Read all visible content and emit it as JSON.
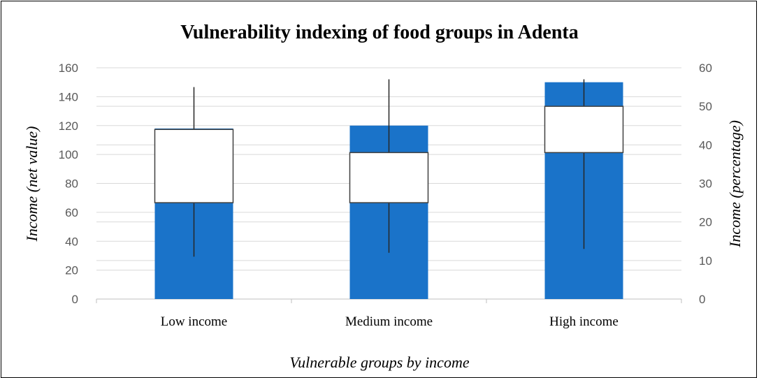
{
  "chart_data": {
    "type": "bar",
    "title": "Vulnerability indexing of food groups in Adenta",
    "xlabel": "Vulnerable groups by income",
    "ylabel_left": "Income (net value)",
    "ylabel_right": "Income (percentage)",
    "categories": [
      "Low income",
      "Medium income",
      "High income"
    ],
    "series": [
      {
        "values": [
          118,
          120,
          150
        ],
        "axis": "left",
        "color": "#1a73c9"
      }
    ],
    "stock": {
      "axis": "right",
      "high": [
        55,
        57,
        57
      ],
      "low": [
        11,
        12,
        13
      ],
      "open": [
        25,
        25,
        38
      ],
      "close": [
        44,
        38,
        50
      ],
      "rising_fill": "#ffffff",
      "falling_fill": "#404040"
    },
    "ylim_left": [
      0,
      160
    ],
    "yticks_left": [
      0,
      20,
      40,
      60,
      80,
      100,
      120,
      140,
      160
    ],
    "ylim_right": [
      0,
      60
    ],
    "yticks_right": [
      0,
      10,
      20,
      30,
      40,
      50,
      60
    ],
    "grid": true
  }
}
